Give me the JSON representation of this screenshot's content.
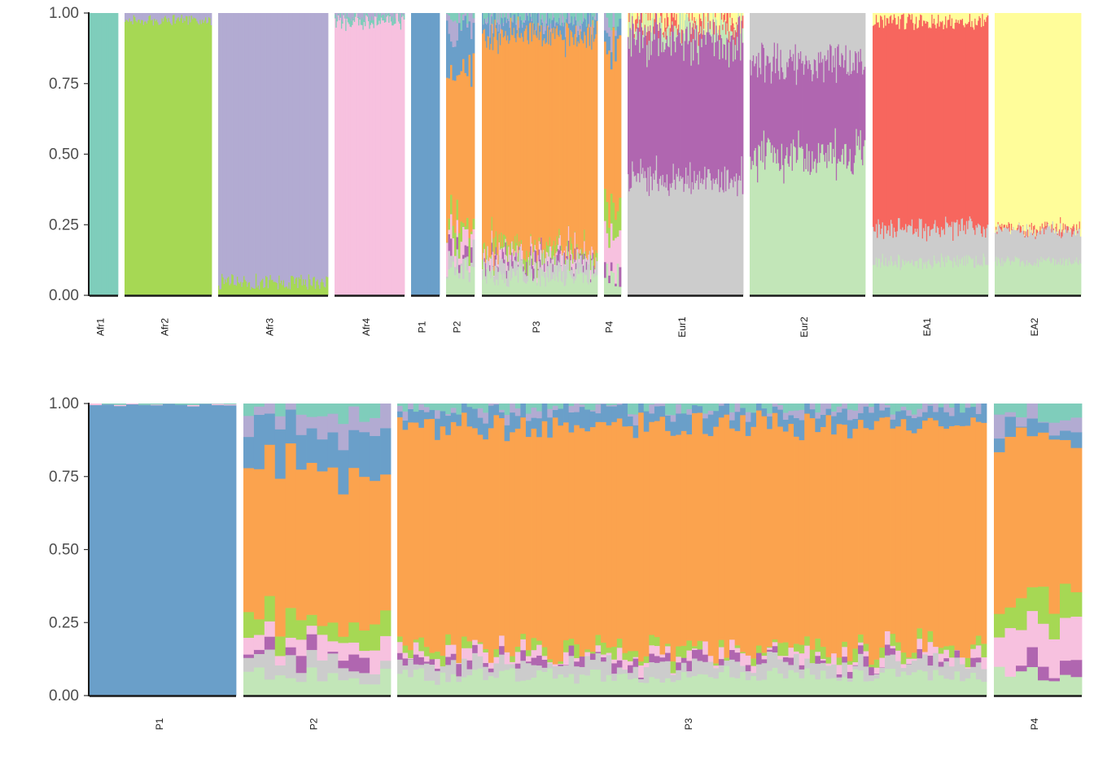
{
  "chart_data": [
    {
      "type": "bar",
      "subtype": "stacked-admixture",
      "title": "",
      "xlabel": "",
      "ylabel": "",
      "ylim": [
        0,
        1
      ],
      "y_ticks": [
        {
          "value": 0.0,
          "label": "0.00"
        },
        {
          "value": 0.25,
          "label": "0.25"
        },
        {
          "value": 0.5,
          "label": "0.50"
        },
        {
          "value": 0.75,
          "label": "0.75"
        },
        {
          "value": 1.0,
          "label": "1.00"
        }
      ],
      "cluster_colors": {
        "Afr1_teal": "#7fcdbb",
        "Afr2_green": "#a6d854",
        "Afr3_lavender": "#b2abd2",
        "Afr4_pink": "#f7c1df",
        "P1_blue": "#6a9fc9",
        "P3_orange": "#fba34e",
        "Eur1_purple": "#b066b0",
        "Eur_grey": "#cccccc",
        "Eur2_lightgreen": "#c2e6b8",
        "EA1_red": "#f7665e",
        "EA2_yellow": "#fffd9a"
      },
      "groups": [
        {
          "label": "Afr1",
          "n": 12,
          "noise": 0.005,
          "components": [
            [
              "#7fcdbb",
              1.0
            ]
          ]
        },
        {
          "label": "Afr2",
          "n": 80,
          "noise": 0.02,
          "components": [
            [
              "#a6d854",
              0.975
            ],
            [
              "#b2abd2",
              0.025
            ]
          ]
        },
        {
          "label": "Afr3",
          "n": 100,
          "noise": 0.03,
          "components": [
            [
              "#a6d854",
              0.05
            ],
            [
              "#b2abd2",
              0.95
            ]
          ]
        },
        {
          "label": "Afr4",
          "n": 65,
          "noise": 0.02,
          "components": [
            [
              "#f7c1df",
              0.97
            ],
            [
              "#7fcdbb",
              0.02
            ],
            [
              "#b2abd2",
              0.01
            ]
          ]
        },
        {
          "label": "P1",
          "n": 12,
          "noise": 0.005,
          "components": [
            [
              "#6a9fc9",
              1.0
            ]
          ]
        },
        {
          "label": "P2",
          "n": 14,
          "noise": 0.05,
          "components": [
            [
              "#c2e6b8",
              0.07
            ],
            [
              "#cccccc",
              0.05
            ],
            [
              "#b066b0",
              0.02
            ],
            [
              "#f7c1df",
              0.06
            ],
            [
              "#a6d854",
              0.05
            ],
            [
              "#fba34e",
              0.53
            ],
            [
              "#6a9fc9",
              0.14
            ],
            [
              "#b2abd2",
              0.05
            ],
            [
              "#7fcdbb",
              0.03
            ]
          ]
        },
        {
          "label": "P3",
          "n": 110,
          "noise": 0.04,
          "components": [
            [
              "#c2e6b8",
              0.07
            ],
            [
              "#cccccc",
              0.04
            ],
            [
              "#b066b0",
              0.01
            ],
            [
              "#f7c1df",
              0.02
            ],
            [
              "#a6d854",
              0.02
            ],
            [
              "#fba34e",
              0.77
            ],
            [
              "#6a9fc9",
              0.05
            ],
            [
              "#b2abd2",
              0.01
            ],
            [
              "#7fcdbb",
              0.01
            ]
          ]
        },
        {
          "label": "P4",
          "n": 8,
          "noise": 0.05,
          "components": [
            [
              "#c2e6b8",
              0.08
            ],
            [
              "#b066b0",
              0.03
            ],
            [
              "#f7c1df",
              0.13
            ],
            [
              "#a6d854",
              0.1
            ],
            [
              "#fba34e",
              0.55
            ],
            [
              "#6a9fc9",
              0.04
            ],
            [
              "#b2abd2",
              0.04
            ],
            [
              "#7fcdbb",
              0.03
            ]
          ]
        },
        {
          "label": "Eur1",
          "n": 110,
          "noise": 0.06,
          "components": [
            [
              "#cccccc",
              0.42
            ],
            [
              "#b066b0",
              0.5
            ],
            [
              "#c2e6b8",
              0.05
            ],
            [
              "#f7665e",
              0.01
            ],
            [
              "#fffd9a",
              0.02
            ]
          ]
        },
        {
          "label": "Eur2",
          "n": 110,
          "noise": 0.08,
          "components": [
            [
              "#c2e6b8",
              0.49
            ],
            [
              "#b066b0",
              0.33
            ],
            [
              "#cccccc",
              0.18
            ]
          ]
        },
        {
          "label": "EA1",
          "n": 110,
          "noise": 0.03,
          "components": [
            [
              "#c2e6b8",
              0.12
            ],
            [
              "#cccccc",
              0.12
            ],
            [
              "#f7665e",
              0.73
            ],
            [
              "#fffd9a",
              0.03
            ]
          ]
        },
        {
          "label": "EA2",
          "n": 90,
          "noise": 0.02,
          "components": [
            [
              "#c2e6b8",
              0.12
            ],
            [
              "#cccccc",
              0.11
            ],
            [
              "#f7665e",
              0.01
            ],
            [
              "#fffd9a",
              0.76
            ]
          ]
        }
      ]
    },
    {
      "type": "bar",
      "subtype": "stacked-admixture",
      "title": "",
      "xlabel": "",
      "ylabel": "",
      "ylim": [
        0,
        1
      ],
      "y_ticks": [
        {
          "value": 0.0,
          "label": "0.00"
        },
        {
          "value": 0.25,
          "label": "0.25"
        },
        {
          "value": 0.5,
          "label": "0.50"
        },
        {
          "value": 0.75,
          "label": "0.75"
        },
        {
          "value": 1.0,
          "label": "1.00"
        }
      ],
      "groups": [
        {
          "label": "P1",
          "n": 12,
          "noise": 0.003,
          "components": [
            [
              "#6a9fc9",
              0.996
            ],
            [
              "#f7c1df",
              0.002
            ],
            [
              "#7fcdbb",
              0.002
            ]
          ]
        },
        {
          "label": "P2",
          "n": 14,
          "noise": 0.04,
          "components": [
            [
              "#c2e6b8",
              0.07
            ],
            [
              "#cccccc",
              0.06
            ],
            [
              "#b066b0",
              0.02
            ],
            [
              "#f7c1df",
              0.06
            ],
            [
              "#a6d854",
              0.06
            ],
            [
              "#fba34e",
              0.51
            ],
            [
              "#6a9fc9",
              0.14
            ],
            [
              "#b2abd2",
              0.05
            ],
            [
              "#7fcdbb",
              0.03
            ]
          ]
        },
        {
          "label": "P3",
          "n": 110,
          "noise": 0.03,
          "components": [
            [
              "#c2e6b8",
              0.07
            ],
            [
              "#cccccc",
              0.04
            ],
            [
              "#b066b0",
              0.01
            ],
            [
              "#f7c1df",
              0.02
            ],
            [
              "#a6d854",
              0.02
            ],
            [
              "#fba34e",
              0.77
            ],
            [
              "#6a9fc9",
              0.05
            ],
            [
              "#b2abd2",
              0.01
            ],
            [
              "#7fcdbb",
              0.01
            ]
          ]
        },
        {
          "label": "P4",
          "n": 8,
          "noise": 0.04,
          "components": [
            [
              "#c2e6b8",
              0.08
            ],
            [
              "#b066b0",
              0.03
            ],
            [
              "#f7c1df",
              0.13
            ],
            [
              "#a6d854",
              0.1
            ],
            [
              "#fba34e",
              0.55
            ],
            [
              "#6a9fc9",
              0.04
            ],
            [
              "#b2abd2",
              0.04
            ],
            [
              "#7fcdbb",
              0.03
            ]
          ]
        }
      ]
    }
  ]
}
